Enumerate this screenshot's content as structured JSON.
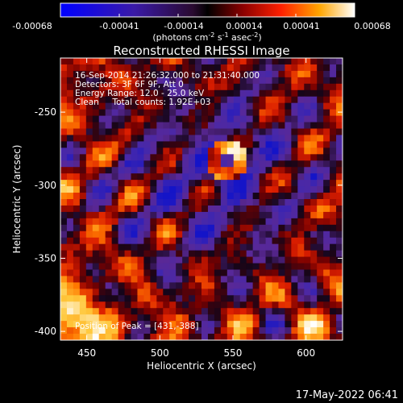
{
  "colorbar": {
    "tick_labels": [
      "-0.00068",
      "-0.00041",
      "-0.00014",
      "0.00014",
      "0.00041",
      "0.00068"
    ],
    "unit_label": "(photons cm",
    "unit_exp1": "-2",
    "unit_mid": " s",
    "unit_exp2": "-1",
    "unit_end": " asec",
    "unit_exp3": "-2",
    "unit_close": ")",
    "range": [
      -0.00068,
      0.00068
    ]
  },
  "image": {
    "title": "Reconstructed RHESSI Image",
    "info_lines": [
      "16-Sep-2014 21:26:32.000 to 21:31:40.000",
      "Detectors: 3F 6F 9F, Att 0",
      "Energy Range: 12.0 - 25.0 keV",
      "Clean     Total counts: 1.92E+03"
    ],
    "peak_label": "Position of Peak = [431,-388]",
    "x_axis_label": "Heliocentric X (arcsec)",
    "y_axis_label": "Heliocentric Y (arcsec)",
    "x_ticks": [
      "450",
      "500",
      "550",
      "600"
    ],
    "y_ticks": [
      "-250",
      "-300",
      "-350",
      "-400"
    ],
    "x_range": [
      432,
      625
    ],
    "y_range": [
      -406,
      -213
    ]
  },
  "footer": {
    "timestamp": "17-May-2022 06:41"
  }
}
